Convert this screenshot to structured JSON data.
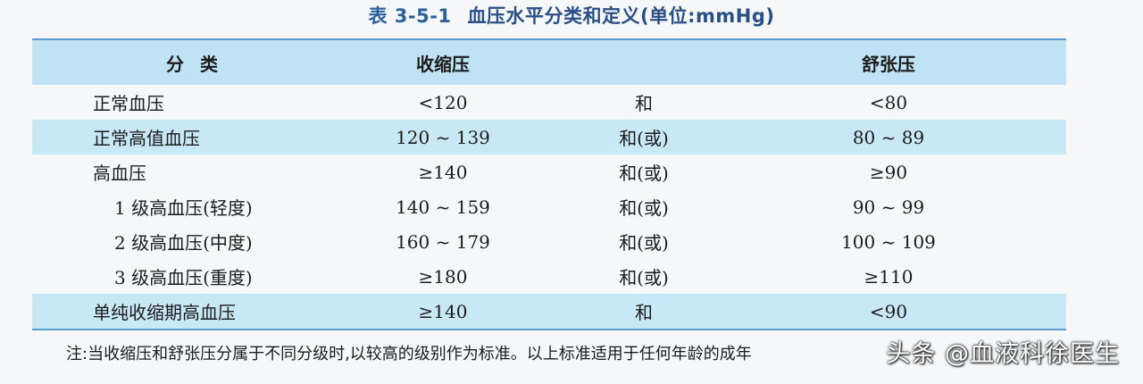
{
  "caption": {
    "number": "表 3-5-1",
    "title": "血压水平分类和定义(单位:mmHg)"
  },
  "table": {
    "headers": [
      "分类",
      "收缩压",
      "",
      "舒张压"
    ],
    "rows": [
      {
        "category": "正常血压",
        "systolic": "<120",
        "conj": "和",
        "diastolic": "<80"
      },
      {
        "category": "正常高值血压",
        "systolic": "120 ~ 139",
        "conj": "和(或)",
        "diastolic": "80 ~ 89"
      },
      {
        "category": "高血压",
        "systolic": "≥140",
        "conj": "和(或)",
        "diastolic": "≥90"
      },
      {
        "category": "1 级高血压(轻度)",
        "systolic": "140 ~ 159",
        "conj": "和(或)",
        "diastolic": "90 ~ 99"
      },
      {
        "category": "2 级高血压(中度)",
        "systolic": "160 ~ 179",
        "conj": "和(或)",
        "diastolic": "100 ~ 109"
      },
      {
        "category": "3 级高血压(重度)",
        "systolic": "≥180",
        "conj": "和(或)",
        "diastolic": "≥110"
      },
      {
        "category": "单纯收缩期高血压",
        "systolic": "≥140",
        "conj": "和",
        "diastolic": "<90"
      }
    ]
  },
  "note": "注:当收缩压和舒张压分属于不同分级时,以较高的级别作为标准。以上标准适用于任何年龄的成年",
  "watermark": "头条 @血液科徐医生"
}
